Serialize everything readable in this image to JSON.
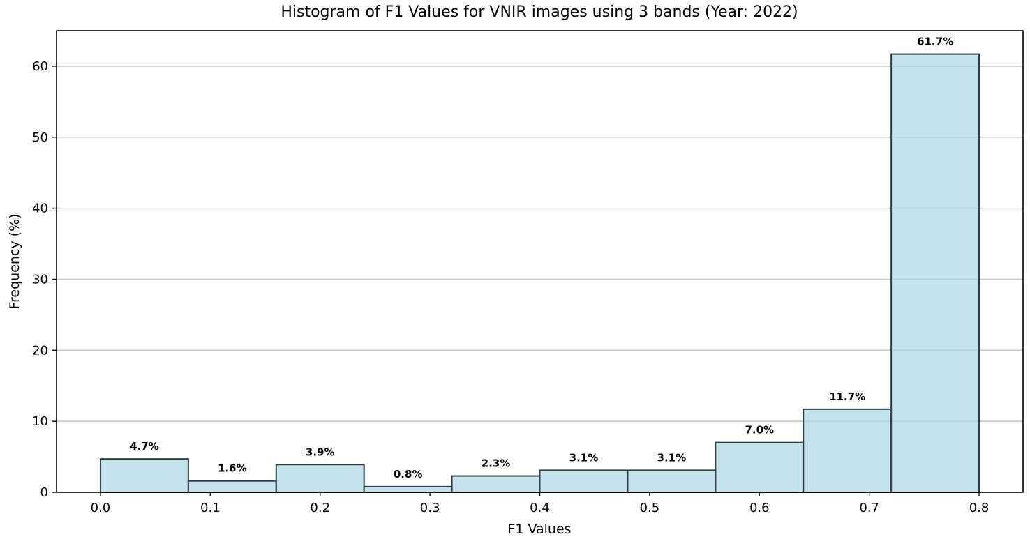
{
  "chart_data": {
    "type": "bar",
    "title": "Histogram of F1 Values for VNIR images using 3 bands (Year: 2022)",
    "xlabel": "F1 Values",
    "ylabel": "Frequency (%)",
    "xlim": [
      -0.04,
      0.84
    ],
    "ylim": [
      0,
      65
    ],
    "grid": "y",
    "xticks": [
      "0.0",
      "0.1",
      "0.2",
      "0.3",
      "0.4",
      "0.5",
      "0.6",
      "0.7",
      "0.8"
    ],
    "yticks": [
      "0",
      "10",
      "20",
      "30",
      "40",
      "50",
      "60"
    ],
    "bar_color": "#add8e6",
    "bar_edge_color": "#2f3e46",
    "bins": [
      {
        "x0": 0.0,
        "x1": 0.08,
        "value": 4.7,
        "label": "4.7%"
      },
      {
        "x0": 0.08,
        "x1": 0.16,
        "value": 1.6,
        "label": "1.6%"
      },
      {
        "x0": 0.16,
        "x1": 0.24,
        "value": 3.9,
        "label": "3.9%"
      },
      {
        "x0": 0.24,
        "x1": 0.32,
        "value": 0.8,
        "label": "0.8%"
      },
      {
        "x0": 0.32,
        "x1": 0.4,
        "value": 2.3,
        "label": "2.3%"
      },
      {
        "x0": 0.4,
        "x1": 0.48,
        "value": 3.1,
        "label": "3.1%"
      },
      {
        "x0": 0.48,
        "x1": 0.56,
        "value": 3.1,
        "label": "3.1%"
      },
      {
        "x0": 0.56,
        "x1": 0.64,
        "value": 7.0,
        "label": "7.0%"
      },
      {
        "x0": 0.64,
        "x1": 0.72,
        "value": 11.7,
        "label": "11.7%"
      },
      {
        "x0": 0.72,
        "x1": 0.8,
        "value": 61.7,
        "label": "61.7%"
      }
    ]
  }
}
